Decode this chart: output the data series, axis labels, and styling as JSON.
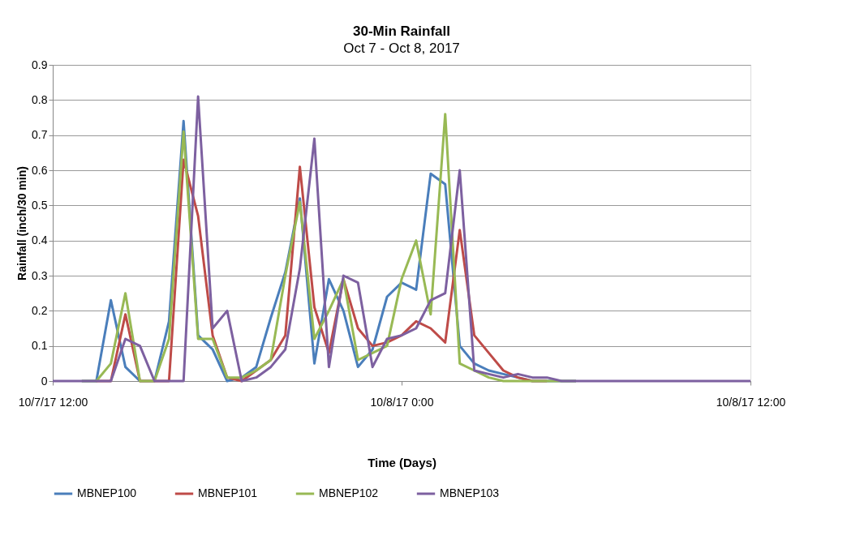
{
  "chart_data": {
    "type": "line",
    "title": "30-Min Rainfall",
    "subtitle": "Oct 7 - Oct 8, 2017",
    "xlabel": "Time (Days)",
    "ylabel": "Rainfall (inch/30 min)",
    "x": [
      "2017-10-07T12:00",
      "2017-10-07T12:30",
      "2017-10-07T13:00",
      "2017-10-07T13:30",
      "2017-10-07T14:00",
      "2017-10-07T14:30",
      "2017-10-07T15:00",
      "2017-10-07T15:30",
      "2017-10-07T16:00",
      "2017-10-07T16:30",
      "2017-10-07T17:00",
      "2017-10-07T17:30",
      "2017-10-07T18:00",
      "2017-10-07T18:30",
      "2017-10-07T19:00",
      "2017-10-07T19:30",
      "2017-10-07T20:00",
      "2017-10-07T20:30",
      "2017-10-07T21:00",
      "2017-10-07T21:30",
      "2017-10-07T22:00",
      "2017-10-07T22:30",
      "2017-10-07T23:00",
      "2017-10-07T23:30",
      "2017-10-08T00:00",
      "2017-10-08T00:30",
      "2017-10-08T01:00",
      "2017-10-08T01:30",
      "2017-10-08T02:00",
      "2017-10-08T02:30",
      "2017-10-08T03:00",
      "2017-10-08T03:30",
      "2017-10-08T04:00",
      "2017-10-08T04:30",
      "2017-10-08T05:00",
      "2017-10-08T05:30",
      "2017-10-08T06:00",
      "2017-10-08T06:30",
      "2017-10-08T07:00",
      "2017-10-08T07:30",
      "2017-10-08T08:00",
      "2017-10-08T08:30",
      "2017-10-08T09:00",
      "2017-10-08T09:30",
      "2017-10-08T10:00",
      "2017-10-08T10:30",
      "2017-10-08T11:00",
      "2017-10-08T11:30",
      "2017-10-08T12:00"
    ],
    "series": [
      {
        "name": "MBNEP100",
        "color": "#4a7ebb",
        "values": [
          null,
          null,
          0,
          0,
          0.23,
          0.04,
          0,
          0,
          0.17,
          0.74,
          0.13,
          0.09,
          0,
          0.01,
          0.04,
          0.18,
          0.31,
          0.52,
          0.05,
          0.29,
          0.2,
          0.04,
          0.09,
          0.24,
          0.28,
          0.26,
          0.59,
          0.56,
          0.1,
          0.05,
          0.03,
          0.02,
          0.01,
          0,
          0,
          0,
          0,
          null,
          null,
          null,
          null,
          null,
          null,
          null,
          null,
          null,
          null,
          null,
          null
        ]
      },
      {
        "name": "MBNEP101",
        "color": "#be4b48",
        "values": [
          null,
          null,
          null,
          0,
          0,
          0.19,
          0,
          0,
          0,
          0.63,
          0.47,
          0.13,
          0.01,
          0,
          0.03,
          0.06,
          0.13,
          0.61,
          0.21,
          0.08,
          0.29,
          0.15,
          0.1,
          0.11,
          0.13,
          0.17,
          0.15,
          0.11,
          0.43,
          0.13,
          0.08,
          0.03,
          0.01,
          0,
          0,
          null,
          null,
          null,
          null,
          null,
          null,
          null,
          null,
          null,
          null,
          null,
          null,
          null,
          null
        ]
      },
      {
        "name": "MBNEP102",
        "color": "#98b954",
        "values": [
          null,
          null,
          0,
          0,
          0.05,
          0.25,
          0,
          0,
          0.12,
          0.71,
          0.12,
          0.12,
          0.01,
          0.01,
          0.03,
          0.06,
          0.3,
          0.51,
          0.12,
          0.2,
          0.29,
          0.06,
          0.08,
          0.1,
          0.29,
          0.4,
          0.19,
          0.76,
          0.05,
          0.03,
          0.01,
          0,
          0,
          0,
          0,
          0,
          0,
          null,
          null,
          null,
          null,
          null,
          null,
          null,
          null,
          null,
          null,
          null,
          null
        ]
      },
      {
        "name": "MBNEP103",
        "color": "#7d60a0",
        "values": [
          0,
          0,
          0,
          0,
          0,
          0.12,
          0.1,
          0,
          0,
          0,
          0.81,
          0.15,
          0.2,
          0,
          0.01,
          0.04,
          0.09,
          0.32,
          0.69,
          0.04,
          0.3,
          0.28,
          0.04,
          0.12,
          0.13,
          0.15,
          0.23,
          0.25,
          0.6,
          0.03,
          0.02,
          0.01,
          0.02,
          0.01,
          0.01,
          0,
          0,
          0,
          0,
          0,
          0,
          0,
          0,
          0,
          0,
          0,
          0,
          0,
          0
        ]
      }
    ],
    "xlim": [
      "2017-10-07T12:00",
      "2017-10-08T12:00"
    ],
    "xticks": [
      {
        "value": "2017-10-07T12:00",
        "label": "10/7/17 12:00"
      },
      {
        "value": "2017-10-08T00:00",
        "label": "10/8/17 0:00"
      },
      {
        "value": "2017-10-08T12:00",
        "label": "10/8/17 12:00"
      }
    ],
    "ylim": [
      0,
      0.9
    ],
    "yticks": [
      0,
      0.1,
      0.2,
      0.3,
      0.4,
      0.5,
      0.6,
      0.7,
      0.8,
      0.9
    ],
    "grid": "y",
    "legend": "bottom",
    "marker": "none",
    "line_style": "solid"
  }
}
